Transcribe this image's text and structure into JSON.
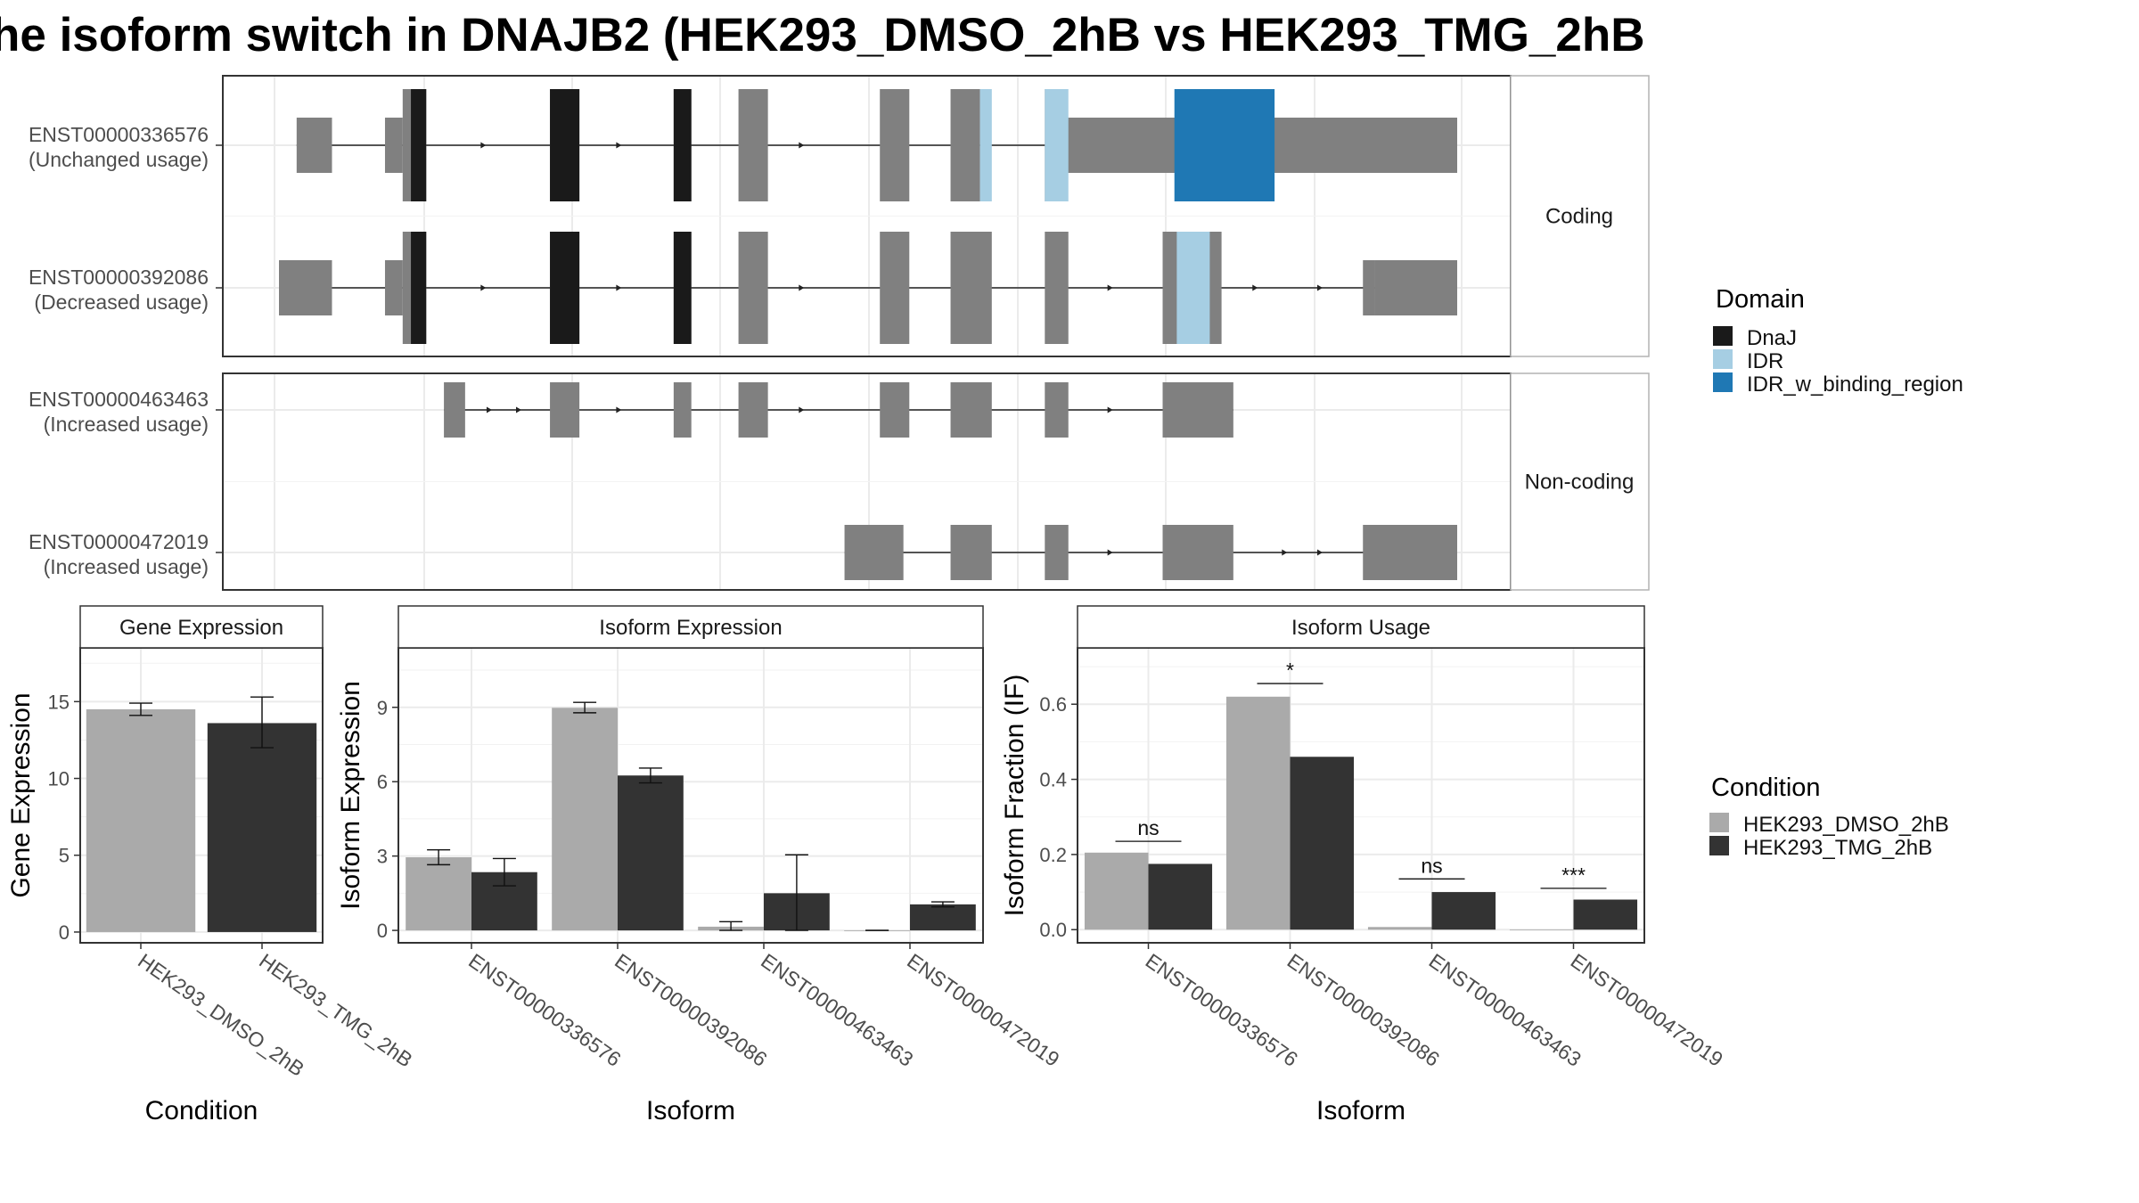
{
  "title": "he isoform switch in DNAJB2 (HEK293_DMSO_2hB vs HEK293_TMG_2hB",
  "colors": {
    "DnaJ": "#1a1a1a",
    "IDR": "#a6cee3",
    "IDR_w_binding_region": "#1f78b4",
    "exon": "#808080",
    "HEK293_DMSO_2hB": "#aaaaaa",
    "HEK293_TMG_2hB": "#333333"
  },
  "chart_data": [
    {
      "type": "gene-structure",
      "genome_range": [
        0,
        1000
      ],
      "facets": [
        {
          "strip": "Coding",
          "transcripts": [
            {
              "id": "ENST00000336576",
              "usage": "(Unchanged usage)",
              "exons": [
                [
                  15,
                  45,
                  "t"
                ],
                [
                  90,
                  105,
                  "t"
                ],
                [
                  105,
                  125,
                  "c"
                ],
                [
                  230,
                  255,
                  "c"
                ],
                [
                  335,
                  350,
                  "c"
                ],
                [
                  390,
                  415,
                  "c"
                ],
                [
                  510,
                  535,
                  "c"
                ],
                [
                  570,
                  595,
                  "c"
                ],
                [
                  650,
                  665,
                  "c"
                ],
                [
                  665,
                  1000,
                  "t"
                ]
              ],
              "domains": [
                {
                  "name": "DnaJ",
                  "start": 112,
                  "end": 125
                },
                {
                  "name": "DnaJ",
                  "start": 230,
                  "end": 255
                },
                {
                  "name": "DnaJ",
                  "start": 335,
                  "end": 350
                },
                {
                  "name": "IDR",
                  "start": 595,
                  "end": 605
                },
                {
                  "name": "IDR",
                  "start": 650,
                  "end": 670
                },
                {
                  "name": "IDR_w_binding_region",
                  "start": 760,
                  "end": 845
                }
              ],
              "arrows": [
                175,
                290,
                445,
                525,
                707
              ]
            },
            {
              "id": "ENST00000392086",
              "usage": "(Decreased usage)",
              "exons": [
                [
                  0,
                  45,
                  "t"
                ],
                [
                  90,
                  105,
                  "t"
                ],
                [
                  105,
                  125,
                  "c"
                ],
                [
                  230,
                  255,
                  "c"
                ],
                [
                  335,
                  350,
                  "c"
                ],
                [
                  390,
                  415,
                  "c"
                ],
                [
                  510,
                  535,
                  "c"
                ],
                [
                  570,
                  605,
                  "c"
                ],
                [
                  650,
                  670,
                  "c"
                ],
                [
                  750,
                  800,
                  "c"
                ],
                [
                  920,
                  930,
                  "t"
                ],
                [
                  930,
                  1000,
                  "t"
                ]
              ],
              "domains": [
                {
                  "name": "DnaJ",
                  "start": 112,
                  "end": 125
                },
                {
                  "name": "DnaJ",
                  "start": 230,
                  "end": 255
                },
                {
                  "name": "DnaJ",
                  "start": 335,
                  "end": 350
                },
                {
                  "name": "IDR",
                  "start": 762,
                  "end": 790
                }
              ],
              "arrows": [
                175,
                290,
                445,
                525,
                707,
                830,
                885
              ]
            }
          ]
        },
        {
          "strip": "Non-coding",
          "transcripts": [
            {
              "id": "ENST00000463463",
              "usage": "(Increased usage)",
              "exons": [
                [
                  140,
                  158,
                  "n"
                ],
                [
                  230,
                  255,
                  "n"
                ],
                [
                  335,
                  350,
                  "n"
                ],
                [
                  390,
                  415,
                  "n"
                ],
                [
                  510,
                  535,
                  "n"
                ],
                [
                  570,
                  605,
                  "n"
                ],
                [
                  650,
                  670,
                  "n"
                ],
                [
                  750,
                  810,
                  "n"
                ]
              ],
              "domains": [],
              "arrows": [
                180,
                205,
                290,
                445,
                525,
                707
              ]
            },
            {
              "id": "ENST00000472019",
              "usage": "(Increased usage)",
              "exons": [
                [
                  480,
                  530,
                  "n"
                ],
                [
                  570,
                  605,
                  "n"
                ],
                [
                  650,
                  670,
                  "n"
                ],
                [
                  750,
                  810,
                  "n"
                ],
                [
                  920,
                  1000,
                  "n"
                ]
              ],
              "domains": [],
              "arrows": [
                707,
                855,
                885
              ]
            }
          ]
        }
      ]
    },
    {
      "type": "bar",
      "strip": "Gene Expression",
      "xlabel": "Condition",
      "ylabel": "Gene Expression",
      "categories": [
        "HEK293_DMSO_2hB",
        "HEK293_TMG_2hB"
      ],
      "values": [
        14.5,
        13.6
      ],
      "errors": [
        [
          14.1,
          14.9
        ],
        [
          12.0,
          15.3
        ]
      ],
      "ylim": [
        -0.7,
        18.5
      ],
      "yticks": [
        0,
        5,
        10,
        15
      ]
    },
    {
      "type": "bar",
      "strip": "Isoform Expression",
      "xlabel": "Isoform",
      "ylabel": "Isoform Expression",
      "categories": [
        "ENST00000336576",
        "ENST00000392086",
        "ENST00000463463",
        "ENST00000472019"
      ],
      "series": [
        {
          "name": "HEK293_DMSO_2hB",
          "values": [
            2.95,
            8.98,
            0.15,
            0.0
          ],
          "errors": [
            [
              2.65,
              3.25
            ],
            [
              8.78,
              9.2
            ],
            [
              0.0,
              0.35
            ],
            [
              0.0,
              0.0
            ]
          ]
        },
        {
          "name": "HEK293_TMG_2hB",
          "values": [
            2.35,
            6.25,
            1.5,
            1.05
          ],
          "errors": [
            [
              1.8,
              2.9
            ],
            [
              5.95,
              6.55
            ],
            [
              0.0,
              3.05
            ],
            [
              0.95,
              1.15
            ]
          ]
        }
      ],
      "ylim": [
        -0.5,
        11.4
      ],
      "yticks": [
        0,
        3,
        6,
        9
      ]
    },
    {
      "type": "bar",
      "strip": "Isoform Usage",
      "xlabel": "Isoform",
      "ylabel": "Isoform Fraction (IF)",
      "categories": [
        "ENST00000336576",
        "ENST00000392086",
        "ENST00000463463",
        "ENST00000472019"
      ],
      "series": [
        {
          "name": "HEK293_DMSO_2hB",
          "values": [
            0.205,
            0.62,
            0.007,
            0.0
          ]
        },
        {
          "name": "HEK293_TMG_2hB",
          "values": [
            0.175,
            0.46,
            0.1,
            0.08
          ]
        }
      ],
      "significance": [
        {
          "label": "ns",
          "y": 0.235
        },
        {
          "label": "*",
          "y": 0.655
        },
        {
          "label": "ns",
          "y": 0.135
        },
        {
          "label": "***",
          "y": 0.11
        }
      ],
      "ylim": [
        -0.035,
        0.75
      ],
      "yticks": [
        0.0,
        0.2,
        0.4,
        0.6
      ]
    }
  ],
  "legends": {
    "domain": {
      "title": "Domain",
      "items": [
        "DnaJ",
        "IDR",
        "IDR_w_binding_region"
      ]
    },
    "condition": {
      "title": "Condition",
      "items": [
        "HEK293_DMSO_2hB",
        "HEK293_TMG_2hB"
      ]
    }
  }
}
